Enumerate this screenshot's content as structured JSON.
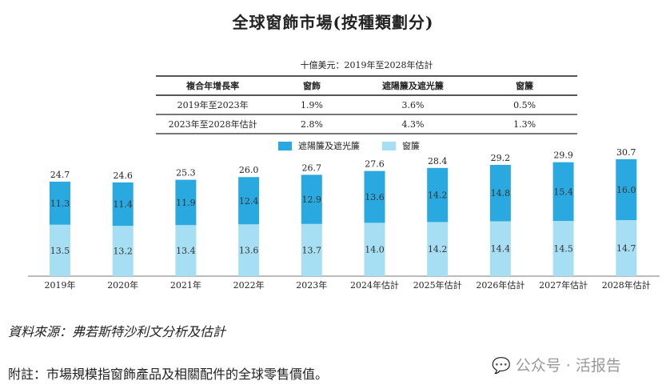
{
  "title": "全球窗飾市場(按種類劃分)",
  "unit": "十億美元：2019年至2028年估計",
  "table": {
    "headers": [
      "複合年增長率",
      "窗飾",
      "遮陽簾及遮光簾",
      "窗簾"
    ],
    "rows": [
      [
        "2019年至2023年",
        "1.9%",
        "3.6%",
        "0.5%"
      ],
      [
        "2023年至2028年估計",
        "2.8%",
        "4.3%",
        "1.3%"
      ]
    ]
  },
  "chart_data": {
    "type": "bar",
    "stacked": true,
    "categories": [
      "2019年",
      "2020年",
      "2021年",
      "2022年",
      "2023年",
      "2024年估計",
      "2025年估計",
      "2026年估計",
      "2027年估計",
      "2028年估計"
    ],
    "series": [
      {
        "name": "窗簾",
        "color": "#a6dff3",
        "values": [
          13.5,
          13.2,
          13.4,
          13.6,
          13.7,
          14.0,
          14.2,
          14.4,
          14.5,
          14.7
        ]
      },
      {
        "name": "遮陽簾及遮光簾",
        "color": "#29a9e0",
        "values": [
          11.3,
          11.4,
          11.9,
          12.4,
          12.9,
          13.6,
          14.2,
          14.8,
          15.4,
          16.0
        ]
      }
    ],
    "totals": [
      "24.7",
      "24.6",
      "25.3",
      "26.0",
      "26.7",
      "27.6",
      "28.4",
      "29.2",
      "29.9",
      "30.7"
    ],
    "legend": [
      "遮陽簾及遮光簾",
      "窗簾"
    ],
    "legend_position": "top",
    "ylim": [
      0,
      31
    ]
  },
  "source": "資料來源：弗若斯特沙利文分析及估計",
  "note": "附註：市場規模指窗飾產品及相關配件的全球零售價值。",
  "watermark": "公众号 · 活报告"
}
